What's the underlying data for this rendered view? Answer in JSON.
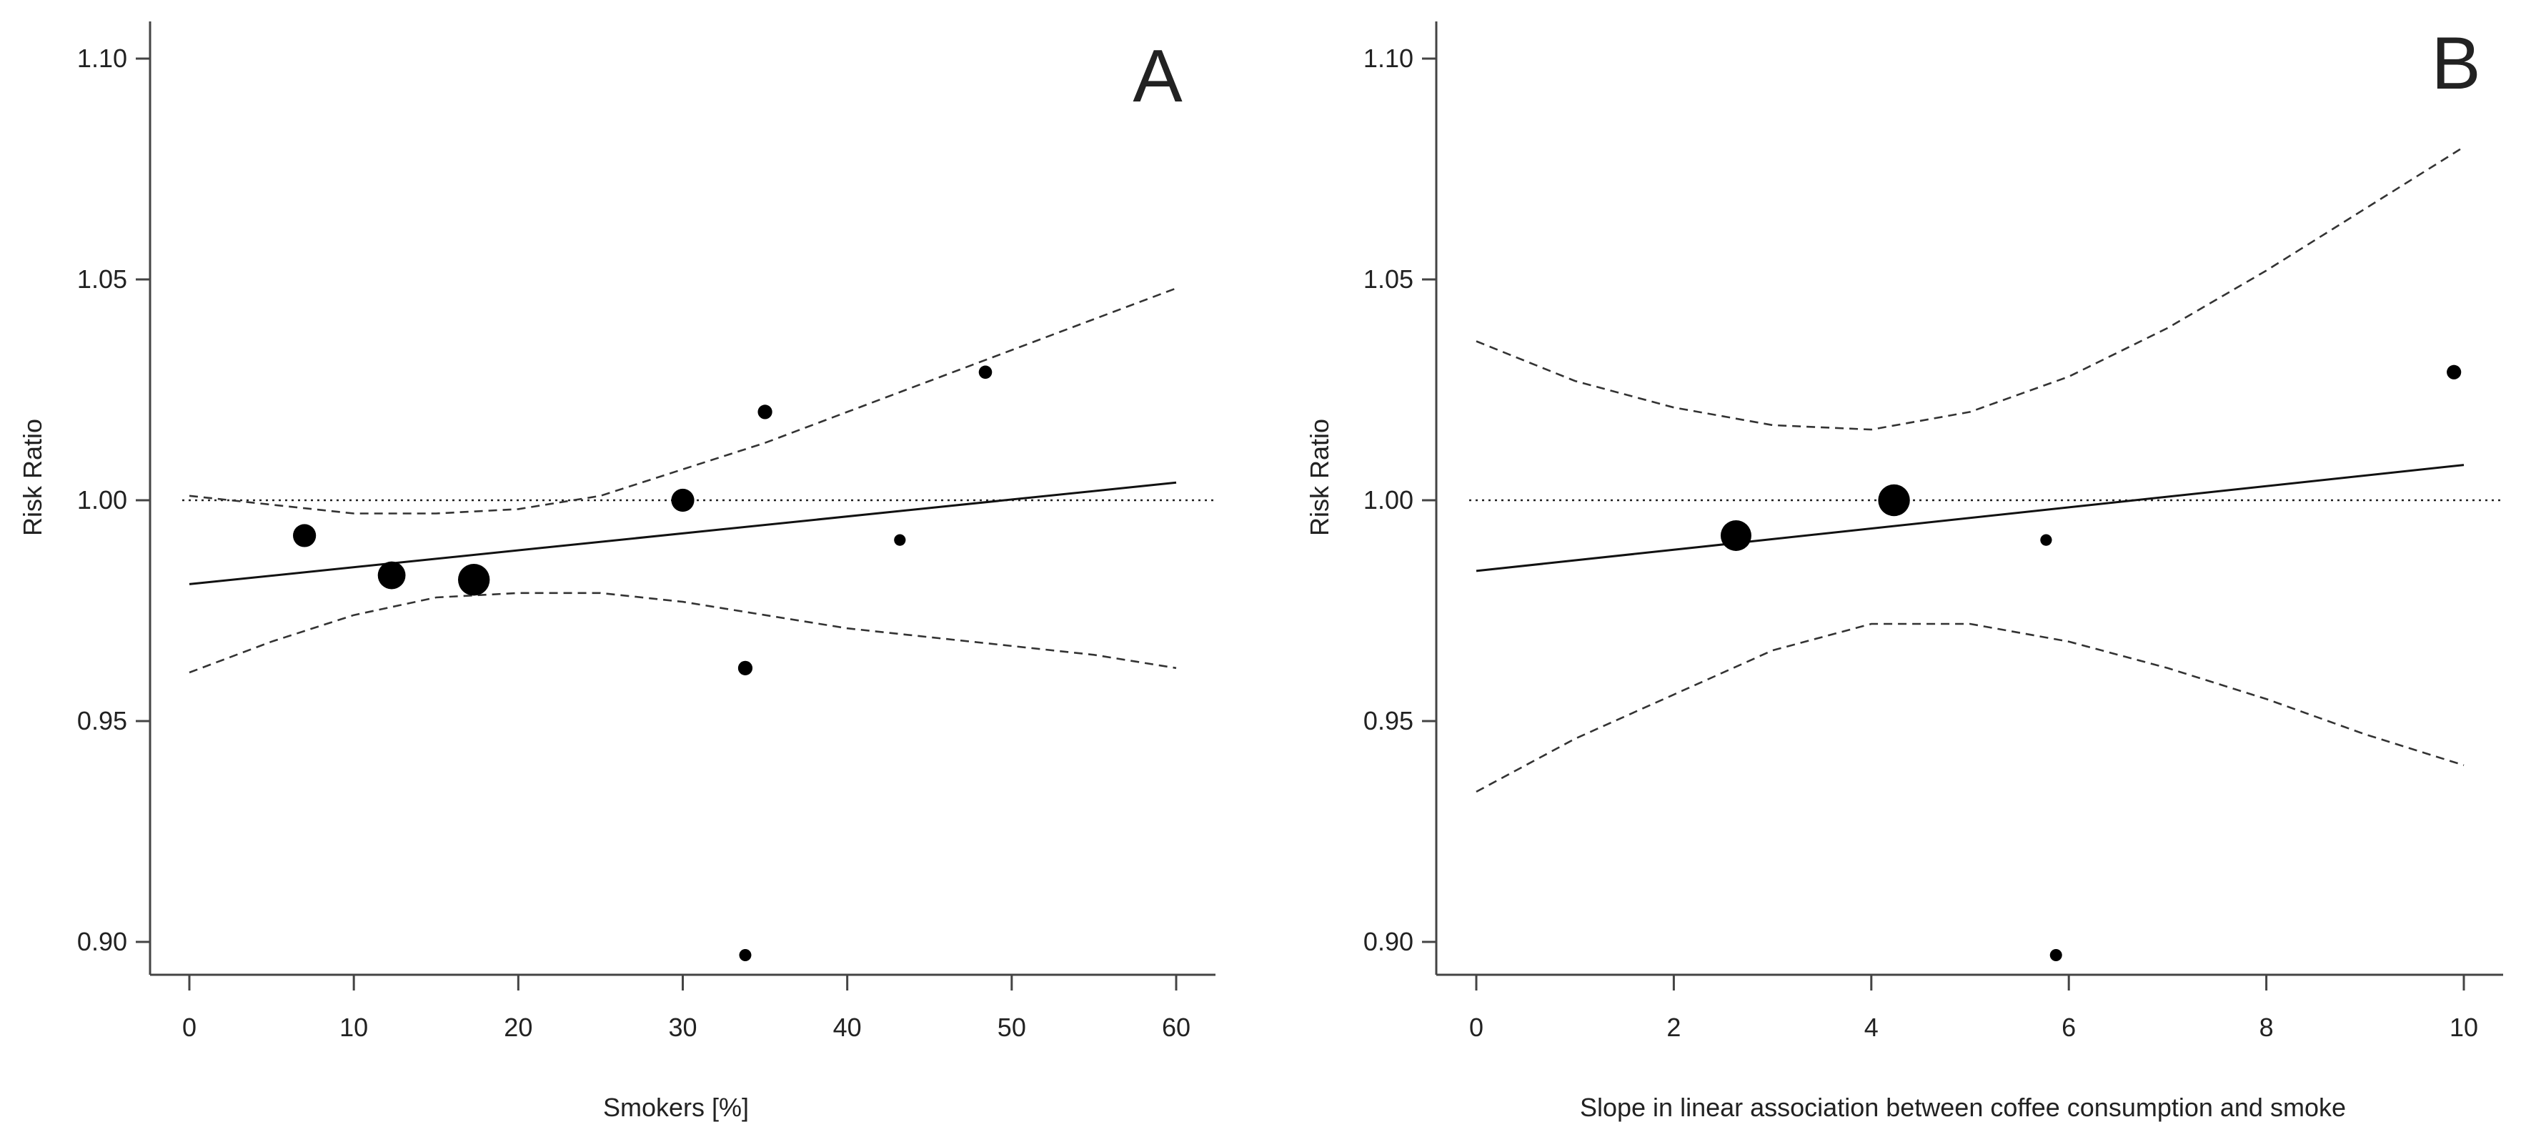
{
  "chart_data": [
    {
      "type": "scatter",
      "panel_label": "A",
      "xlabel": "Smokers [%]",
      "ylabel": "Risk Ratio",
      "xlim": [
        0,
        60
      ],
      "ylim": [
        0.9,
        1.1
      ],
      "xticks": [
        0,
        10,
        20,
        30,
        40,
        50,
        60
      ],
      "xtick_labels": [
        "0",
        "10",
        "20",
        "30",
        "40",
        "50",
        "60"
      ],
      "yticks": [
        0.9,
        0.95,
        1.0,
        1.05,
        1.1
      ],
      "ytick_labels": [
        "0.90",
        "0.95",
        "1.00",
        "1.05",
        "1.10"
      ],
      "reference_line": {
        "y": 1.0,
        "style": "dotted"
      },
      "points": [
        {
          "x": 7.0,
          "y": 0.992,
          "weight": 3.6
        },
        {
          "x": 12.3,
          "y": 0.983,
          "weight": 5.2
        },
        {
          "x": 17.3,
          "y": 0.982,
          "weight": 6.8
        },
        {
          "x": 30.0,
          "y": 1.0,
          "weight": 3.6
        },
        {
          "x": 33.8,
          "y": 0.962,
          "weight": 1.4
        },
        {
          "x": 33.8,
          "y": 0.897,
          "weight": 1.0
        },
        {
          "x": 35.0,
          "y": 1.02,
          "weight": 1.4
        },
        {
          "x": 43.2,
          "y": 0.991,
          "weight": 0.9
        },
        {
          "x": 48.4,
          "y": 1.029,
          "weight": 1.2
        }
      ],
      "series": [
        {
          "name": "regression",
          "style": "solid",
          "x": [
            0,
            60
          ],
          "y": [
            0.981,
            1.004
          ]
        },
        {
          "name": "ci-upper",
          "style": "dashed",
          "x": [
            0,
            5,
            10,
            15,
            20,
            25,
            30,
            35,
            40,
            45,
            50,
            55,
            60
          ],
          "y": [
            1.001,
            0.999,
            0.997,
            0.997,
            0.998,
            1.001,
            1.007,
            1.013,
            1.02,
            1.027,
            1.034,
            1.041,
            1.048
          ]
        },
        {
          "name": "ci-lower",
          "style": "dashed",
          "x": [
            0,
            5,
            10,
            15,
            20,
            25,
            30,
            35,
            40,
            45,
            50,
            55,
            60
          ],
          "y": [
            0.961,
            0.968,
            0.974,
            0.978,
            0.979,
            0.979,
            0.977,
            0.974,
            0.971,
            0.969,
            0.967,
            0.965,
            0.962
          ]
        }
      ]
    },
    {
      "type": "scatter",
      "panel_label": "B",
      "xlabel": "Slope in linear association between coffee consumption and smoke",
      "ylabel": "Risk Ratio",
      "xlim": [
        0,
        10
      ],
      "ylim": [
        0.9,
        1.1
      ],
      "xticks": [
        0,
        2,
        4,
        6,
        8,
        10
      ],
      "xtick_labels": [
        "0",
        "2",
        "4",
        "6",
        "8",
        "10"
      ],
      "yticks": [
        0.9,
        0.95,
        1.0,
        1.05,
        1.1
      ],
      "ytick_labels": [
        "0.90",
        "0.95",
        "1.00",
        "1.05",
        "1.10"
      ],
      "reference_line": {
        "y": 1.0,
        "style": "dotted"
      },
      "points": [
        {
          "x": 2.63,
          "y": 0.992,
          "weight": 6.4
        },
        {
          "x": 4.23,
          "y": 1.0,
          "weight": 6.8
        },
        {
          "x": 5.77,
          "y": 0.991,
          "weight": 0.9
        },
        {
          "x": 5.87,
          "y": 0.897,
          "weight": 1.0
        },
        {
          "x": 9.9,
          "y": 1.029,
          "weight": 1.4
        }
      ],
      "series": [
        {
          "name": "regression",
          "style": "solid",
          "x": [
            0,
            10
          ],
          "y": [
            0.984,
            1.008
          ]
        },
        {
          "name": "ci-upper",
          "style": "dashed",
          "x": [
            0,
            1,
            2,
            3,
            4,
            5,
            6,
            7,
            8,
            9,
            10
          ],
          "y": [
            1.036,
            1.027,
            1.021,
            1.017,
            1.016,
            1.02,
            1.028,
            1.039,
            1.052,
            1.066,
            1.08
          ]
        },
        {
          "name": "ci-lower",
          "style": "dashed",
          "x": [
            0,
            1,
            2,
            3,
            4,
            5,
            6,
            7,
            8,
            9,
            10
          ],
          "y": [
            0.934,
            0.946,
            0.956,
            0.966,
            0.972,
            0.972,
            0.968,
            0.962,
            0.955,
            0.947,
            0.94
          ]
        }
      ]
    }
  ]
}
